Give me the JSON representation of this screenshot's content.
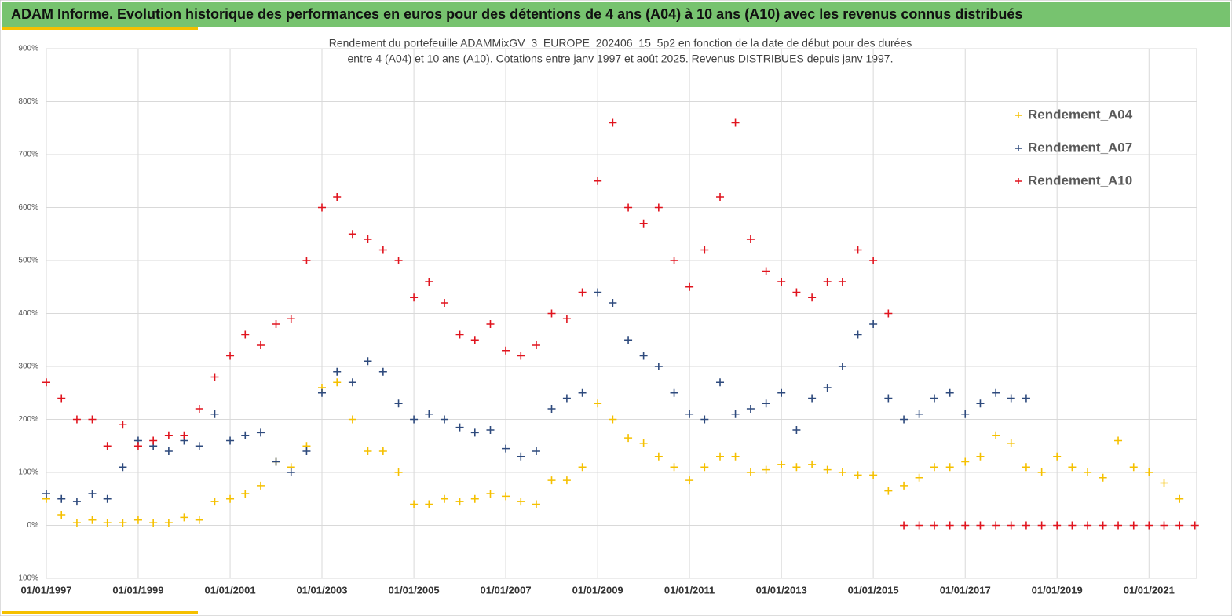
{
  "header": {
    "title": "ADAM Informe. Evolution historique des performances en euros pour des détentions de 4 ans (A04) à 10 ans (A10) avec les revenus connus distribués"
  },
  "chart_data": {
    "type": "scatter",
    "title": [
      "Rendement du portefeuille ADAMMixGV_3_EUROPE_202406_15_5p2  en fonction de la date de début pour des durées",
      "entre 4 (A04) et 10 ans (A10). Cotations entre janv 1997 et août 2025. Revenus DISTRIBUES depuis janv 1997."
    ],
    "x": [
      "1997-01-01",
      "1997-05-01",
      "1997-09-01",
      "1998-01-01",
      "1998-05-01",
      "1998-09-01",
      "1999-01-01",
      "1999-05-01",
      "1999-09-01",
      "2000-01-01",
      "2000-05-01",
      "2000-09-01",
      "2001-01-01",
      "2001-05-01",
      "2001-09-01",
      "2002-01-01",
      "2002-05-01",
      "2002-09-01",
      "2003-01-01",
      "2003-05-01",
      "2003-09-01",
      "2004-01-01",
      "2004-05-01",
      "2004-09-01",
      "2005-01-01",
      "2005-05-01",
      "2005-09-01",
      "2006-01-01",
      "2006-05-01",
      "2006-09-01",
      "2007-01-01",
      "2007-05-01",
      "2007-09-01",
      "2008-01-01",
      "2008-05-01",
      "2008-09-01",
      "2009-01-01",
      "2009-05-01",
      "2009-09-01",
      "2010-01-01",
      "2010-05-01",
      "2010-09-01",
      "2011-01-01",
      "2011-05-01",
      "2011-09-01",
      "2012-01-01",
      "2012-05-01",
      "2012-09-01",
      "2013-01-01",
      "2013-05-01",
      "2013-09-01",
      "2014-01-01",
      "2014-05-01",
      "2014-09-01",
      "2015-01-01",
      "2015-05-01",
      "2015-09-01",
      "2016-01-01",
      "2016-05-01",
      "2016-09-01",
      "2017-01-01",
      "2017-05-01",
      "2017-09-01",
      "2018-01-01",
      "2018-05-01",
      "2018-09-01",
      "2019-01-01",
      "2019-05-01",
      "2019-09-01",
      "2020-01-01",
      "2020-05-01",
      "2020-09-01",
      "2021-01-01",
      "2021-05-01",
      "2021-09-01",
      "2022-01-01"
    ],
    "series": [
      {
        "name": "Rendement_A04",
        "color": "#f5c000",
        "values": [
          50,
          20,
          5,
          10,
          5,
          5,
          10,
          5,
          5,
          15,
          10,
          45,
          50,
          60,
          75,
          120,
          110,
          150,
          260,
          270,
          200,
          140,
          140,
          100,
          40,
          40,
          50,
          45,
          50,
          60,
          55,
          45,
          40,
          85,
          85,
          110,
          230,
          200,
          165,
          155,
          130,
          110,
          85,
          110,
          130,
          130,
          100,
          105,
          115,
          110,
          115,
          105,
          100,
          95,
          95,
          65,
          75,
          90,
          110,
          110,
          120,
          130,
          170,
          155,
          110,
          100,
          130,
          110,
          100,
          90,
          160,
          110,
          100,
          80,
          50,
          null
        ]
      },
      {
        "name": "Rendement_A07",
        "color": "#2e4a7d",
        "values": [
          60,
          50,
          45,
          60,
          50,
          110,
          160,
          150,
          140,
          160,
          150,
          210,
          160,
          170,
          175,
          120,
          100,
          140,
          250,
          290,
          270,
          310,
          290,
          230,
          200,
          210,
          200,
          185,
          175,
          180,
          145,
          130,
          140,
          220,
          240,
          250,
          440,
          420,
          350,
          320,
          300,
          250,
          210,
          200,
          270,
          210,
          220,
          230,
          250,
          180,
          240,
          260,
          300,
          360,
          380,
          240,
          200,
          210,
          240,
          250,
          210,
          230,
          250,
          240,
          240,
          null,
          null,
          null,
          null,
          null,
          null,
          null,
          null,
          null,
          null,
          null
        ]
      },
      {
        "name": "Rendement_A10",
        "color": "#e0141e",
        "values": [
          270,
          240,
          200,
          200,
          150,
          190,
          150,
          160,
          170,
          170,
          220,
          280,
          320,
          360,
          340,
          380,
          390,
          500,
          600,
          620,
          550,
          540,
          520,
          500,
          430,
          460,
          420,
          360,
          350,
          380,
          330,
          320,
          340,
          400,
          390,
          440,
          650,
          760,
          600,
          570,
          600,
          500,
          450,
          520,
          620,
          760,
          540,
          480,
          460,
          440,
          430,
          460,
          460,
          520,
          500,
          400,
          0,
          0,
          0,
          0,
          0,
          0,
          0,
          0,
          0,
          0,
          0,
          0,
          0,
          0,
          0,
          0,
          0,
          0,
          0,
          0
        ]
      }
    ],
    "xlim": [
      "1997-01-01",
      "2022-01-15"
    ],
    "xticks": [
      {
        "value": "1997-01-01",
        "label": "01/01/1997"
      },
      {
        "value": "1999-01-01",
        "label": "01/01/1999"
      },
      {
        "value": "2001-01-01",
        "label": "01/01/2001"
      },
      {
        "value": "2003-01-01",
        "label": "01/01/2003"
      },
      {
        "value": "2005-01-01",
        "label": "01/01/2005"
      },
      {
        "value": "2007-01-01",
        "label": "01/01/2007"
      },
      {
        "value": "2009-01-01",
        "label": "01/01/2009"
      },
      {
        "value": "2011-01-01",
        "label": "01/01/2011"
      },
      {
        "value": "2013-01-01",
        "label": "01/01/2013"
      },
      {
        "value": "2015-01-01",
        "label": "01/01/2015"
      },
      {
        "value": "2017-01-01",
        "label": "01/01/2017"
      },
      {
        "value": "2019-01-01",
        "label": "01/01/2019"
      },
      {
        "value": "2021-01-01",
        "label": "01/01/2021"
      }
    ],
    "ylim": [
      -100,
      900
    ],
    "yticks": [
      {
        "value": -100,
        "label": "-100%"
      },
      {
        "value": 0,
        "label": "0%"
      },
      {
        "value": 100,
        "label": "100%"
      },
      {
        "value": 200,
        "label": "200%"
      },
      {
        "value": 300,
        "label": "300%"
      },
      {
        "value": 400,
        "label": "400%"
      },
      {
        "value": 500,
        "label": "500%"
      },
      {
        "value": 600,
        "label": "600%"
      },
      {
        "value": 700,
        "label": "700%"
      },
      {
        "value": 800,
        "label": "800%"
      },
      {
        "value": 900,
        "label": "900%"
      }
    ],
    "grid": true,
    "legend": "upper right"
  }
}
